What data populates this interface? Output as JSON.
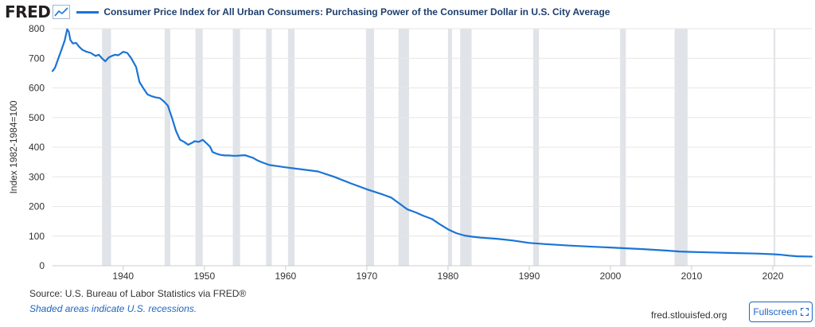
{
  "header": {
    "logo": "FRED",
    "logo_icon": "trend-chart-icon",
    "title": "Consumer Price Index for All Urban Consumers: Purchasing Power of the Consumer Dollar in U.S. City Average"
  },
  "chart_data": {
    "type": "line",
    "title": "Consumer Price Index for All Urban Consumers: Purchasing Power of the Consumer Dollar in U.S. City Average",
    "xlabel": "",
    "ylabel": "Index 1982-1984=100",
    "xlim": [
      1931.3,
      2024.8
    ],
    "ylim": [
      0,
      800
    ],
    "x_ticks": [
      1940,
      1950,
      1960,
      1970,
      1980,
      1990,
      2000,
      2010,
      2020
    ],
    "y_ticks": [
      0,
      100,
      200,
      300,
      400,
      500,
      600,
      700,
      800
    ],
    "grid": true,
    "shaded_note": "recessions",
    "recessions": [
      [
        1937.4,
        1938.5
      ],
      [
        1945.1,
        1945.8
      ],
      [
        1948.9,
        1949.8
      ],
      [
        1953.5,
        1954.4
      ],
      [
        1957.6,
        1958.3
      ],
      [
        1960.3,
        1961.1
      ],
      [
        1969.9,
        1970.9
      ],
      [
        1973.9,
        1975.2
      ],
      [
        1980.0,
        1980.5
      ],
      [
        1981.5,
        1982.9
      ],
      [
        1990.5,
        1991.2
      ],
      [
        2001.2,
        2001.9
      ],
      [
        2007.9,
        2009.5
      ],
      [
        2020.1,
        2020.3
      ]
    ],
    "series": [
      {
        "name": "Purchasing Power of the Consumer Dollar",
        "color": "#1a74d6",
        "x": [
          1931.3,
          1931.6,
          1932.0,
          1932.4,
          1932.8,
          1933.1,
          1933.3,
          1933.5,
          1933.8,
          1934.2,
          1934.6,
          1935.0,
          1935.5,
          1936.0,
          1936.6,
          1937.0,
          1937.4,
          1937.8,
          1938.2,
          1938.6,
          1939.0,
          1939.4,
          1940.0,
          1940.5,
          1941.0,
          1941.6,
          1942.0,
          1942.5,
          1943.0,
          1943.5,
          1944.0,
          1944.5,
          1945.0,
          1945.5,
          1946.0,
          1946.5,
          1947.0,
          1947.5,
          1948.0,
          1948.5,
          1948.8,
          1949.3,
          1949.8,
          1950.3,
          1950.7,
          1951.0,
          1951.5,
          1952.0,
          1952.5,
          1953.0,
          1953.5,
          1954.0,
          1954.5,
          1955.0,
          1956.0,
          1956.5,
          1957.0,
          1957.5,
          1958.0,
          1959.0,
          1960.0,
          1962.0,
          1964.0,
          1966.0,
          1968.0,
          1970.0,
          1972.0,
          1973.0,
          1974.0,
          1975.0,
          1976.0,
          1977.0,
          1978.0,
          1979.0,
          1980.0,
          1981.0,
          1982.0,
          1983.0,
          1984.0,
          1986.0,
          1988.0,
          1990.0,
          1992.0,
          1995.0,
          1998.0,
          2001.0,
          2004.0,
          2007.0,
          2008.5,
          2009.5,
          2012.0,
          2015.0,
          2018.0,
          2020.0,
          2021.0,
          2022.0,
          2023.0,
          2024.8
        ],
        "values": [
          657,
          668,
          698,
          728,
          760,
          798,
          790,
          762,
          750,
          752,
          738,
          728,
          722,
          718,
          708,
          712,
          700,
          690,
          702,
          708,
          712,
          710,
          722,
          718,
          700,
          670,
          620,
          598,
          578,
          572,
          568,
          566,
          555,
          540,
          500,
          455,
          425,
          418,
          408,
          415,
          420,
          418,
          425,
          412,
          402,
          384,
          378,
          374,
          372,
          372,
          371,
          371,
          372,
          373,
          364,
          356,
          350,
          345,
          340,
          336,
          332,
          325,
          318,
          300,
          278,
          258,
          240,
          230,
          210,
          190,
          180,
          168,
          158,
          140,
          123,
          110,
          102,
          98,
          95,
          91,
          85,
          77,
          73,
          68,
          64,
          60,
          56,
          51,
          48,
          47,
          45,
          43,
          41,
          39,
          37,
          34,
          32,
          31
        ]
      }
    ]
  },
  "footer": {
    "source": "Source: U.S. Bureau of Labor Statistics via FRED®",
    "note": "Shaded areas indicate U.S. recessions.",
    "site": "fred.stlouisfed.org",
    "fullscreen_label": "Fullscreen",
    "fullscreen_icon": "expand-icon"
  }
}
